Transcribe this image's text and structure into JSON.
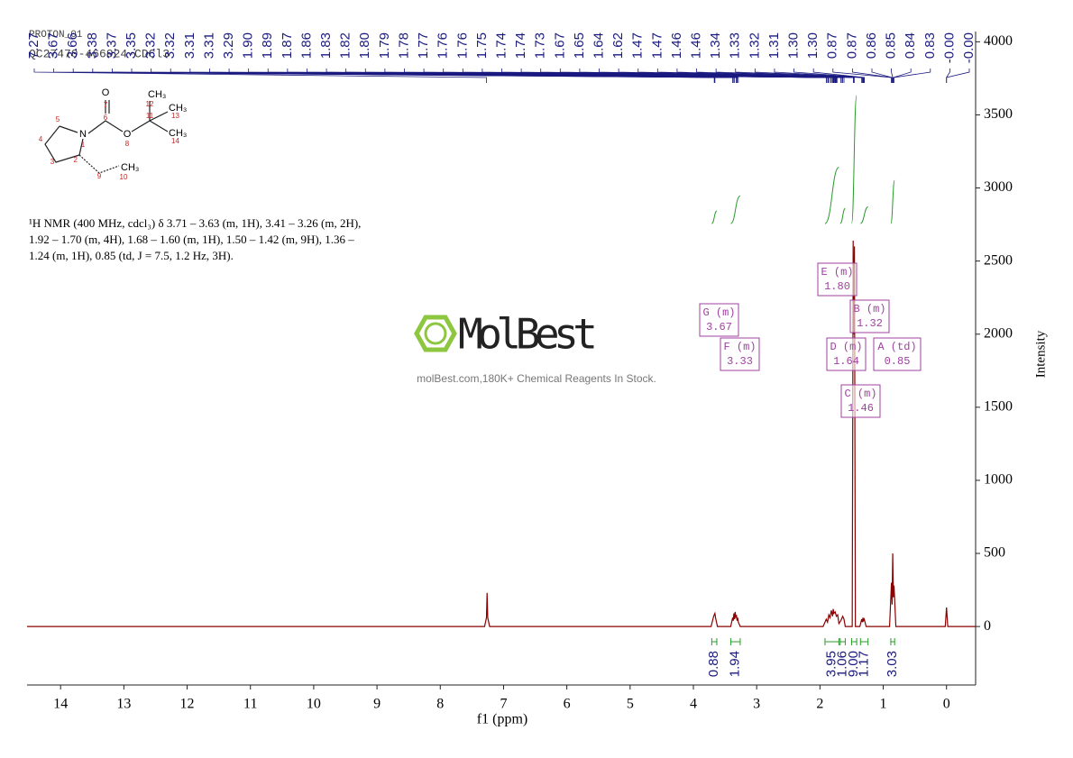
{
  "chart_data": {
    "type": "nmr",
    "header": [
      "PROTON_01",
      "QC27470-466924-CDCl3"
    ],
    "structure": [
      "O",
      "7",
      "5",
      "N",
      "1",
      "6",
      "O",
      "8",
      "CH₃",
      "12",
      "11",
      "CH₃",
      "13",
      "CH₃",
      "14",
      "4",
      "3",
      "2",
      "9",
      "10",
      "CH₃"
    ],
    "description": [
      "¹H NMR (400 MHz, cdcl₃) δ 3.71 – 3.63 (m, 1H), 3.41 – 3.26 (m, 2H),",
      "1.92 – 1.70 (m, 4H), 1.68 – 1.60 (m, 1H), 1.50 – 1.42 (m, 9H), 1.36 –",
      "1.24 (m, 1H), 0.85 (td, J = 7.5, 1.2 Hz, 3H)."
    ],
    "watermark": {
      "brand": "MolBest",
      "tagline": "molBest.com,180K+ Chemical Reagents In Stock."
    },
    "x_label": "f1 (ppm)",
    "y_label": "Intensity",
    "xlim": [
      14.53,
      -0.46
    ],
    "ylim": [
      -400,
      4070
    ],
    "xticks": [
      14,
      13,
      12,
      11,
      10,
      9,
      8,
      7,
      6,
      5,
      4,
      3,
      2,
      1,
      0
    ],
    "yticks": [
      0,
      500,
      1000,
      1500,
      2000,
      2500,
      3000,
      3500,
      4000
    ],
    "color": "#8b0000",
    "x": [
      14.53,
      7.3,
      7.27,
      7.26,
      7.25,
      7.22,
      3.72,
      3.68,
      3.67,
      3.66,
      3.65,
      3.62,
      3.41,
      3.38,
      3.37,
      3.36,
      3.35,
      3.34,
      3.33,
      3.32,
      3.31,
      3.3,
      3.29,
      3.26,
      1.95,
      1.9,
      1.88,
      1.86,
      1.84,
      1.82,
      1.8,
      1.79,
      1.78,
      1.76,
      1.74,
      1.72,
      1.7,
      1.67,
      1.65,
      1.64,
      1.62,
      1.6,
      1.49,
      1.475,
      1.465,
      1.455,
      1.44,
      1.37,
      1.34,
      1.33,
      1.32,
      1.31,
      1.3,
      1.27,
      0.9,
      0.87,
      0.86,
      0.85,
      0.84,
      0.83,
      0.8,
      0.02,
      0.0,
      -0.02,
      -0.46
    ],
    "values": [
      0,
      0,
      60,
      230,
      60,
      0,
      0,
      70,
      80,
      90,
      60,
      0,
      0,
      60,
      40,
      90,
      50,
      100,
      60,
      80,
      40,
      60,
      30,
      0,
      0,
      50,
      30,
      80,
      60,
      110,
      70,
      120,
      90,
      100,
      70,
      80,
      20,
      40,
      60,
      70,
      50,
      0,
      0,
      2640,
      2000,
      2600,
      0,
      0,
      50,
      30,
      60,
      40,
      50,
      0,
      0,
      300,
      150,
      500,
      200,
      280,
      0,
      0,
      130,
      0,
      0
    ],
    "peaks": [
      {
        "value": 7.27,
        "label": "7.27"
      },
      {
        "value": 3.67,
        "label": "3.67"
      },
      {
        "value": 3.66,
        "label": "3.66"
      },
      {
        "value": 3.38,
        "label": "3.38"
      },
      {
        "value": 3.37,
        "label": "3.37"
      },
      {
        "value": 3.35,
        "label": "3.35"
      },
      {
        "value": 3.32,
        "label": "3.32"
      },
      {
        "value": 3.32,
        "label": "3.32"
      },
      {
        "value": 3.31,
        "label": "3.31"
      },
      {
        "value": 3.31,
        "label": "3.31"
      },
      {
        "value": 3.29,
        "label": "3.29"
      },
      {
        "value": 1.9,
        "label": "1.90"
      },
      {
        "value": 1.89,
        "label": "1.89"
      },
      {
        "value": 1.87,
        "label": "1.87"
      },
      {
        "value": 1.86,
        "label": "1.86"
      },
      {
        "value": 1.83,
        "label": "1.83"
      },
      {
        "value": 1.82,
        "label": "1.82"
      },
      {
        "value": 1.8,
        "label": "1.80"
      },
      {
        "value": 1.79,
        "label": "1.79"
      },
      {
        "value": 1.78,
        "label": "1.78"
      },
      {
        "value": 1.77,
        "label": "1.77"
      },
      {
        "value": 1.76,
        "label": "1.76"
      },
      {
        "value": 1.76,
        "label": "1.76"
      },
      {
        "value": 1.75,
        "label": "1.75"
      },
      {
        "value": 1.74,
        "label": "1.74"
      },
      {
        "value": 1.74,
        "label": "1.74"
      },
      {
        "value": 1.73,
        "label": "1.73"
      },
      {
        "value": 1.67,
        "label": "1.67"
      },
      {
        "value": 1.65,
        "label": "1.65"
      },
      {
        "value": 1.64,
        "label": "1.64"
      },
      {
        "value": 1.62,
        "label": "1.62"
      },
      {
        "value": 1.47,
        "label": "1.47"
      },
      {
        "value": 1.47,
        "label": "1.47"
      },
      {
        "value": 1.46,
        "label": "1.46"
      },
      {
        "value": 1.46,
        "label": "1.46"
      },
      {
        "value": 1.34,
        "label": "1.34"
      },
      {
        "value": 1.33,
        "label": "1.33"
      },
      {
        "value": 1.32,
        "label": "1.32"
      },
      {
        "value": 1.31,
        "label": "1.31"
      },
      {
        "value": 1.3,
        "label": "1.30"
      },
      {
        "value": 1.3,
        "label": "1.30"
      },
      {
        "value": 0.87,
        "label": "0.87"
      },
      {
        "value": 0.87,
        "label": "0.87"
      },
      {
        "value": 0.86,
        "label": "0.86"
      },
      {
        "value": 0.85,
        "label": "0.85"
      },
      {
        "value": 0.84,
        "label": "0.84"
      },
      {
        "value": 0.83,
        "label": "0.83"
      },
      {
        "value": 0,
        "label": "-0.00"
      },
      {
        "value": 0,
        "label": "-0.00"
      }
    ],
    "integrals": {
      "ranges": [
        [
          3.71,
          3.63
        ],
        [
          3.41,
          3.26
        ],
        [
          1.92,
          1.7
        ],
        [
          1.68,
          1.6
        ],
        [
          1.5,
          1.42
        ],
        [
          1.36,
          1.24
        ],
        [
          0.88,
          0.82
        ]
      ],
      "values": [
        0.88,
        1.94,
        3.95,
        1.06,
        9,
        1.17,
        3.03
      ],
      "value_labels": [
        "0.88",
        "1.94",
        "3.95",
        "1.06",
        "9.00",
        "1.17",
        "3.03"
      ]
    },
    "multiplets": [
      {
        "label": "G (m)",
        "shift": "3.67"
      },
      {
        "label": "F (m)",
        "shift": "3.33"
      },
      {
        "label": "E (m)",
        "shift": "1.80"
      },
      {
        "label": "D (m)",
        "shift": "1.64"
      },
      {
        "label": "B (m)",
        "shift": "1.32"
      },
      {
        "label": "C (m)",
        "shift": "1.46"
      },
      {
        "label": "A (td)",
        "shift": "0.85"
      }
    ]
  }
}
